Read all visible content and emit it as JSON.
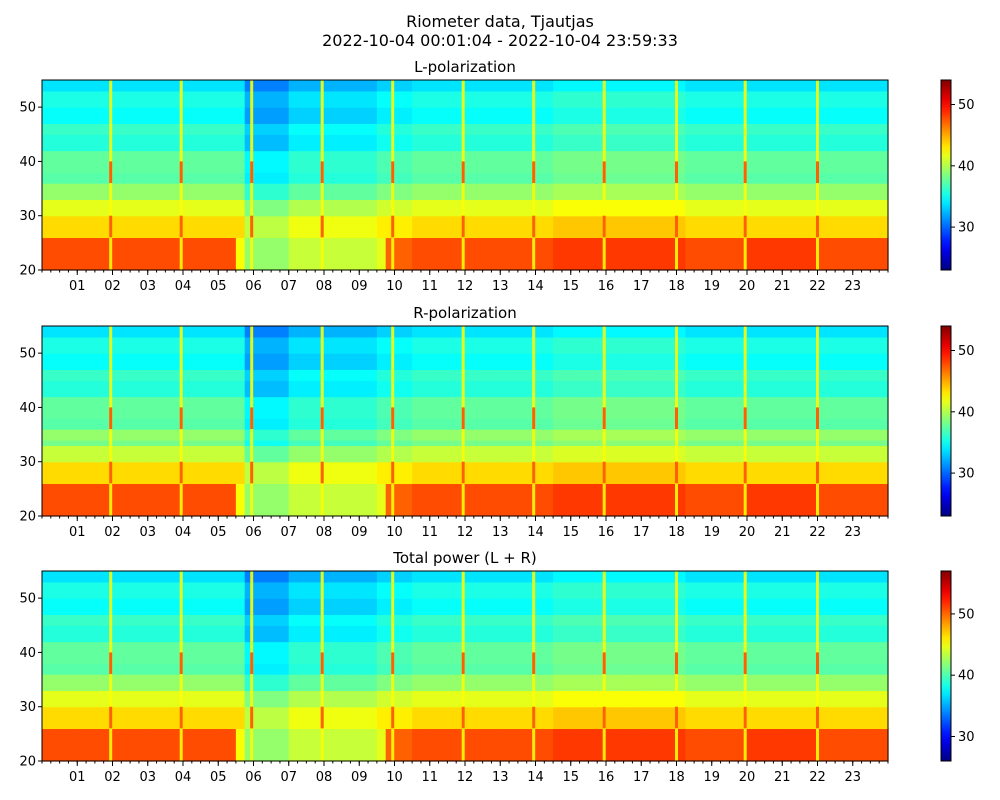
{
  "figure": {
    "title_line1": "Riometer data, Tjautjas",
    "title_line2": "2022-10-04 00:01:04 - 2022-10-04 23:59:33"
  },
  "colormap": "jet",
  "chart_data": [
    {
      "type": "heatmap",
      "title": "L-polarization",
      "x_tick_labels": [
        "01",
        "02",
        "03",
        "04",
        "05",
        "06",
        "07",
        "08",
        "09",
        "10",
        "11",
        "12",
        "13",
        "14",
        "15",
        "16",
        "17",
        "18",
        "19",
        "20",
        "21",
        "22",
        "23"
      ],
      "xlim_hours": [
        0,
        24
      ],
      "ylim": [
        20,
        55
      ],
      "y_ticks": [
        20,
        30,
        40,
        50
      ],
      "colorbar": {
        "range": [
          23,
          54
        ],
        "ticks": [
          30,
          40,
          50
        ]
      },
      "grid": false
    },
    {
      "type": "heatmap",
      "title": "R-polarization",
      "x_tick_labels": [
        "01",
        "02",
        "03",
        "04",
        "05",
        "06",
        "07",
        "08",
        "09",
        "10",
        "11",
        "12",
        "13",
        "14",
        "15",
        "16",
        "17",
        "18",
        "19",
        "20",
        "21",
        "22",
        "23"
      ],
      "xlim_hours": [
        0,
        24
      ],
      "ylim": [
        20,
        55
      ],
      "y_ticks": [
        20,
        30,
        40,
        50
      ],
      "colorbar": {
        "range": [
          23,
          54
        ],
        "ticks": [
          30,
          40,
          50
        ]
      },
      "grid": false
    },
    {
      "type": "heatmap",
      "title": "Total power (L + R)",
      "x_tick_labels": [
        "01",
        "02",
        "03",
        "04",
        "05",
        "06",
        "07",
        "08",
        "09",
        "10",
        "11",
        "12",
        "13",
        "14",
        "15",
        "16",
        "17",
        "18",
        "19",
        "20",
        "21",
        "22",
        "23"
      ],
      "xlim_hours": [
        0,
        24
      ],
      "ylim": [
        20,
        55
      ],
      "y_ticks": [
        20,
        30,
        40,
        50
      ],
      "colorbar": {
        "range": [
          26,
          57
        ],
        "ticks": [
          30,
          40,
          50
        ]
      },
      "grid": false
    }
  ]
}
